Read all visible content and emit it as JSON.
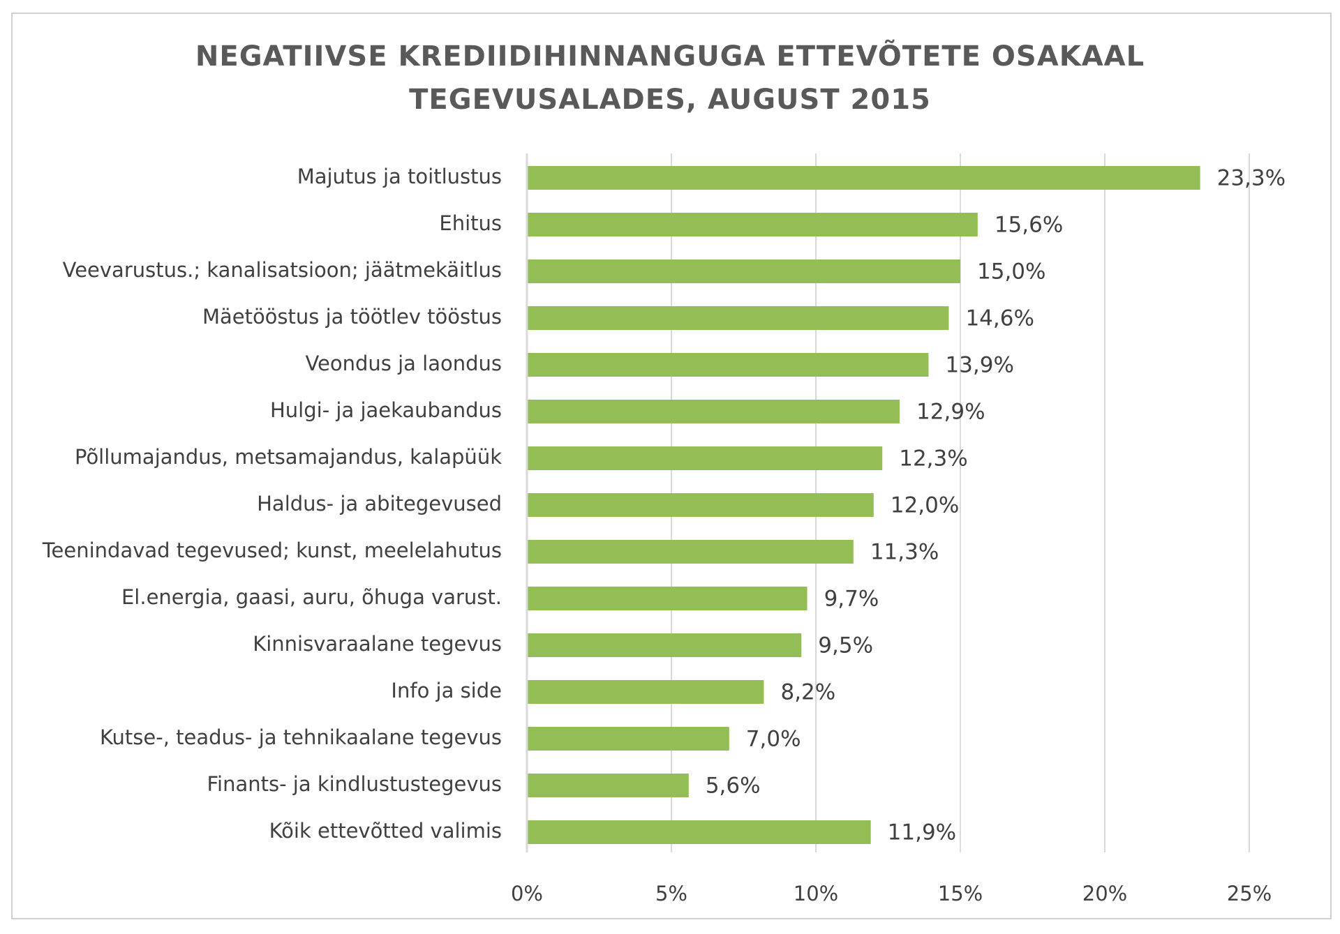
{
  "chart_data": {
    "type": "bar",
    "orientation": "horizontal",
    "title_lines": [
      "NEGATIIVSE KREDIIDIHINNANGUGA ETTEVÕTETE OSAKAAL",
      "TEGEVUSALADES, AUGUST 2015"
    ],
    "categories": [
      "Majutus ja toitlustus",
      "Ehitus",
      "Veevarustus.; kanalisatsioon; jäätmekäitlus",
      "Mäetööstus ja töötlev tööstus",
      "Veondus ja laondus",
      "Hulgi- ja jaekaubandus",
      "Põllumajandus, metsamajandus, kalapüük",
      "Haldus- ja abitegevused",
      "Teenindavad tegevused; kunst, meelelahutus",
      "El.energia, gaasi, auru, õhuga varust.",
      "Kinnisvaraalane tegevus",
      "Info ja side",
      "Kutse-, teadus- ja tehnikaalane tegevus",
      "Finants- ja kindlustustegevus",
      "Kõik ettevõtted valimis"
    ],
    "values": [
      23.3,
      15.6,
      15.0,
      14.6,
      13.9,
      12.9,
      12.3,
      12.0,
      11.3,
      9.7,
      9.5,
      8.2,
      7.0,
      5.6,
      11.9
    ],
    "value_labels": [
      "23,3%",
      "15,6%",
      "15,0%",
      "14,6%",
      "13,9%",
      "12,9%",
      "12,3%",
      "12,0%",
      "11,3%",
      "9,7%",
      "9,5%",
      "8,2%",
      "7,0%",
      "5,6%",
      "11,9%"
    ],
    "xlim": [
      0,
      25
    ],
    "xticks": [
      0,
      5,
      10,
      15,
      20,
      25
    ],
    "xtick_labels": [
      "0%",
      "5%",
      "10%",
      "15%",
      "20%",
      "25%"
    ],
    "xlabel": "",
    "ylabel": "",
    "grid": true,
    "legend": "none",
    "bar_color": "#92BE55",
    "grid_color": "#D9D9D9",
    "text_color": "#404040",
    "title_color": "#595959"
  }
}
